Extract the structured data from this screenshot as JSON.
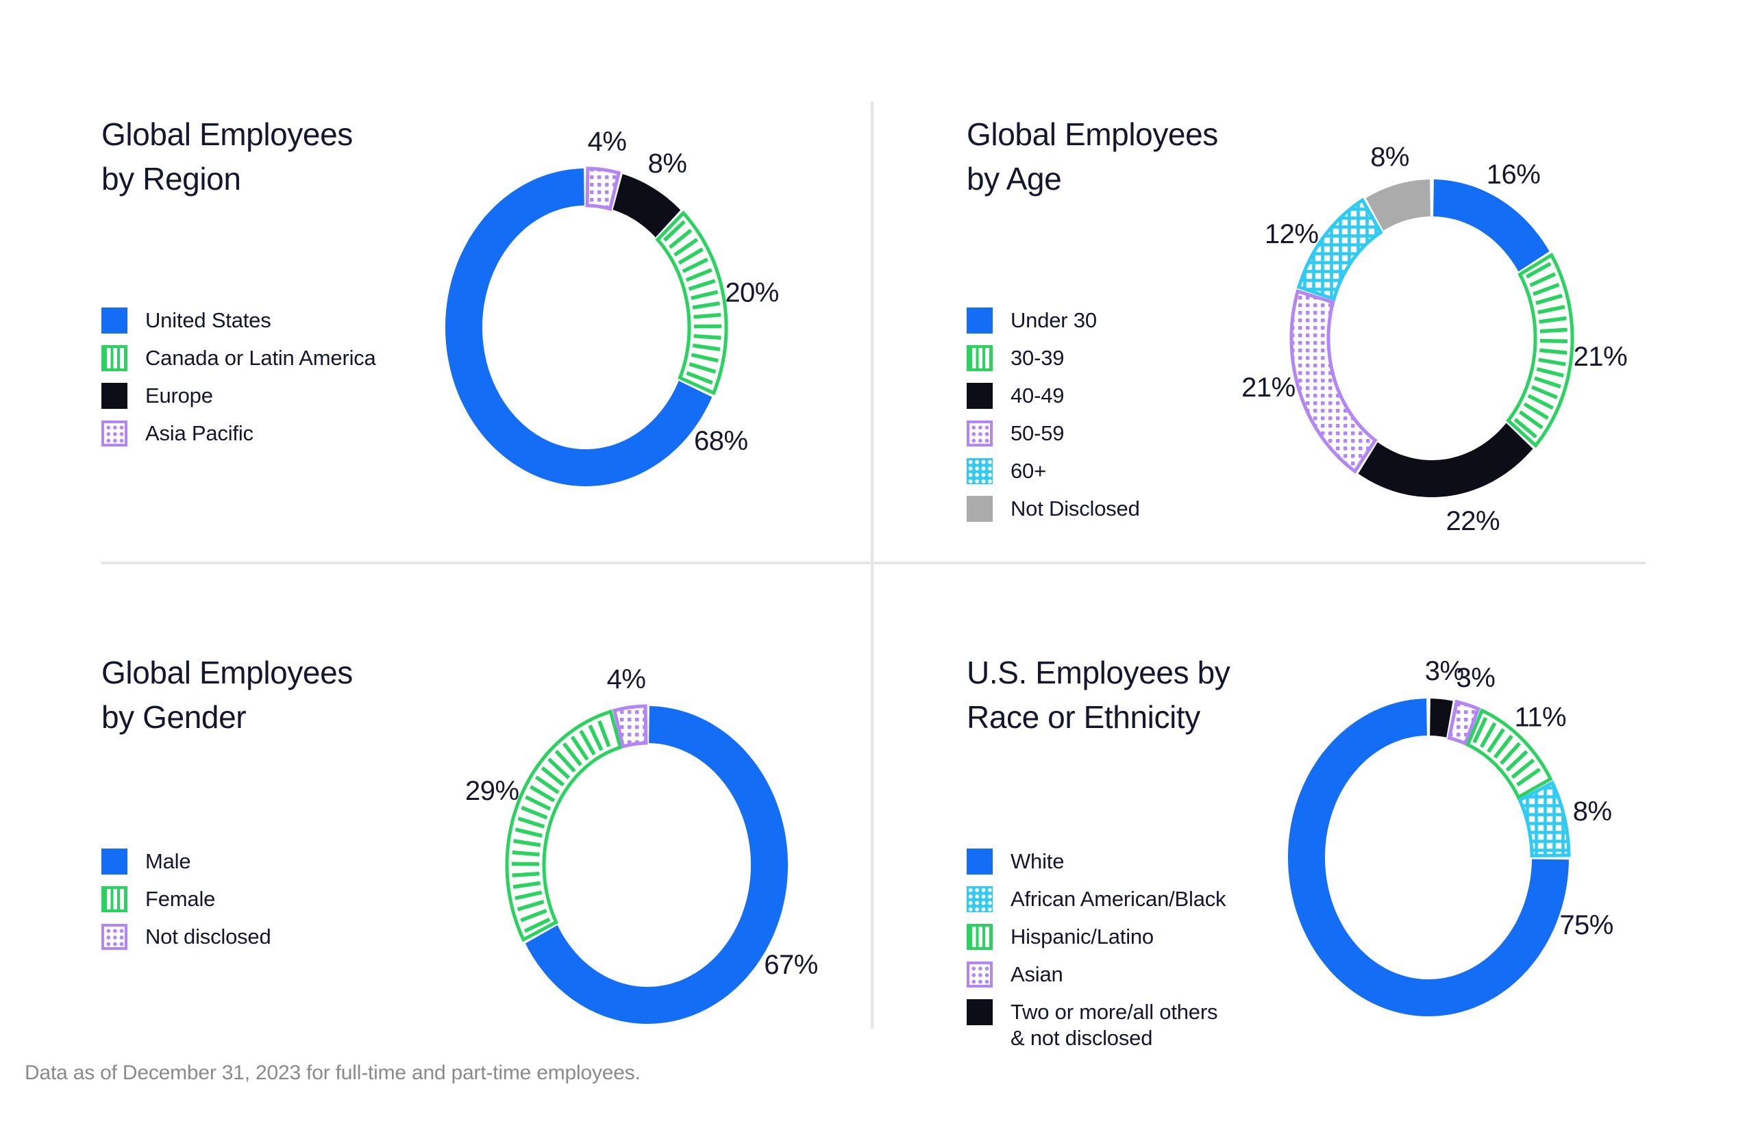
{
  "footer": "Data as of December 31, 2023 for full-time and part-time employees.",
  "colors": {
    "blue": "#146EF5",
    "green": "#2AD35F",
    "black": "#0C0D17",
    "purple": "#B385F6",
    "cyan": "#30CBF2",
    "gray": "#ABABAB",
    "ink": "#13162D",
    "divider": "#E6E6E6",
    "footnote_gray": "#8A8A8A"
  },
  "styles": {
    "blue-solid": {
      "type": "solid",
      "color_key": "blue"
    },
    "green-stripes": {
      "type": "stripes",
      "color_key": "green"
    },
    "black-solid": {
      "type": "solid",
      "color_key": "black"
    },
    "purple-dots": {
      "type": "dots",
      "color_key": "purple"
    },
    "cyan-check": {
      "type": "check",
      "color_key": "cyan"
    },
    "gray-solid": {
      "type": "solid",
      "color_key": "gray"
    }
  },
  "chart_data": [
    {
      "type": "pie",
      "id": "region",
      "title": "Global Employees by Region",
      "title_lines": [
        "Global Employees",
        "by Region"
      ],
      "legend_position": "left",
      "legend": [
        {
          "label": "United States",
          "style": "blue-solid"
        },
        {
          "label": "Canada or Latin America",
          "style": "green-stripes"
        },
        {
          "label": "Europe",
          "style": "black-solid"
        },
        {
          "label": "Asia Pacific",
          "style": "purple-dots"
        }
      ],
      "segments": [
        {
          "label": "Asia Pacific",
          "value": 4,
          "display": "4%",
          "style": "purple-dots"
        },
        {
          "label": "Europe",
          "value": 8,
          "display": "8%",
          "style": "black-solid"
        },
        {
          "label": "Canada or Latin America",
          "value": 20,
          "display": "20%",
          "style": "green-stripes"
        },
        {
          "label": "United States",
          "value": 68,
          "display": "68%",
          "style": "blue-solid",
          "label_angle": 127
        }
      ]
    },
    {
      "type": "pie",
      "id": "age",
      "title": "Global Employees by Age",
      "title_lines": [
        "Global Employees",
        "by Age"
      ],
      "legend_position": "left",
      "legend": [
        {
          "label": "Under 30",
          "style": "blue-solid"
        },
        {
          "label": "30-39",
          "style": "green-stripes"
        },
        {
          "label": "40-49",
          "style": "black-solid"
        },
        {
          "label": "50-59",
          "style": "purple-dots"
        },
        {
          "label": "60+",
          "style": "cyan-check"
        },
        {
          "label": "Not Disclosed",
          "style": "gray-solid"
        }
      ],
      "segments": [
        {
          "label": "Under 30",
          "value": 16,
          "display": "16%",
          "style": "blue-solid"
        },
        {
          "label": "30-39",
          "value": 21,
          "display": "21%",
          "style": "green-stripes"
        },
        {
          "label": "40-49",
          "value": 22,
          "display": "22%",
          "style": "black-solid",
          "label_angle": 166
        },
        {
          "label": "50-59",
          "value": 21,
          "display": "21%",
          "style": "purple-dots",
          "label_angle": 255
        },
        {
          "label": "60+",
          "value": 12,
          "display": "12%",
          "style": "cyan-check",
          "label_angle": 304
        },
        {
          "label": "Not Disclosed",
          "value": 8,
          "display": "8%",
          "style": "gray-solid"
        }
      ]
    },
    {
      "type": "pie",
      "id": "gender",
      "title": "Global Employees by Gender",
      "title_lines": [
        "Global Employees",
        "by Gender"
      ],
      "legend_position": "left",
      "legend": [
        {
          "label": "Male",
          "style": "blue-solid"
        },
        {
          "label": "Female",
          "style": "green-stripes"
        },
        {
          "label": "Not disclosed",
          "style": "purple-dots"
        }
      ],
      "segments": [
        {
          "label": "Male",
          "value": 67,
          "display": "67%",
          "style": "blue-solid",
          "label_angle": 122
        },
        {
          "label": "Female",
          "value": 29,
          "display": "29%",
          "style": "green-stripes"
        },
        {
          "label": "Not disclosed",
          "value": 4,
          "display": "4%",
          "style": "purple-dots"
        }
      ]
    },
    {
      "type": "pie",
      "id": "race",
      "title": "U.S. Employees by Race or Ethnicity",
      "title_lines": [
        "U.S. Employees by",
        "Race or Ethnicity"
      ],
      "legend_position": "left",
      "legend": [
        {
          "label": "White",
          "style": "blue-solid"
        },
        {
          "label": "African American/Black",
          "style": "cyan-check"
        },
        {
          "label": "Hispanic/Latino",
          "style": "green-stripes"
        },
        {
          "label": "Asian",
          "style": "purple-dots"
        },
        {
          "label": "Two or more/all others\n& not disclosed",
          "style": "black-solid"
        }
      ],
      "segments": [
        {
          "label": "Two or more/all others & not disclosed",
          "value": 3,
          "display": "3%",
          "style": "black-solid"
        },
        {
          "label": "Asian",
          "value": 3,
          "display": "3%",
          "style": "purple-dots"
        },
        {
          "label": "Hispanic/Latino",
          "value": 11,
          "display": "11%",
          "style": "green-stripes"
        },
        {
          "label": "African American/Black",
          "value": 8,
          "display": "8%",
          "style": "cyan-check"
        },
        {
          "label": "White",
          "value": 75,
          "display": "75%",
          "style": "blue-solid",
          "label_angle": 111
        }
      ]
    }
  ]
}
